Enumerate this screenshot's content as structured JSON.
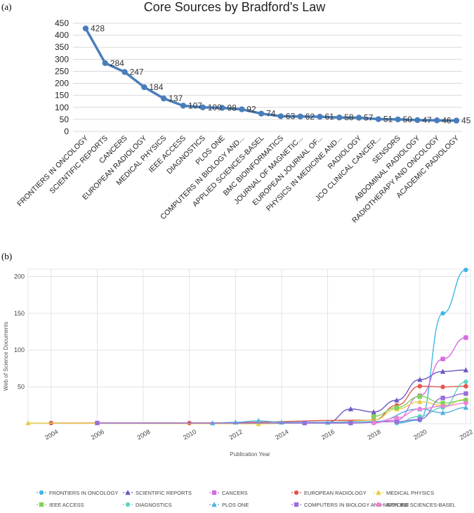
{
  "panel_a_label": "(a)",
  "panel_b_label": "(b)",
  "chart_data": [
    {
      "type": "line",
      "title": "Core Sources by Bradford's Law",
      "xlabel": "",
      "ylabel": "",
      "ylim": [
        0,
        450
      ],
      "yticks": [
        0,
        50,
        100,
        150,
        200,
        250,
        300,
        350,
        400,
        450
      ],
      "categories": [
        "FRONTIERS IN ONCOLOGY",
        "SCIENTIFIC REPORTS",
        "CANCERS",
        "EUROPEAN RADIOLOGY",
        "MEDICAL PHYSICS",
        "IEEE ACCESS",
        "DIAGNOSTICS",
        "PLOS ONE",
        "COMPUTERS IN BIOLOGY AND...",
        "APPLIED SCIENCES-BASEL",
        "BMC BIOINFORMATICS",
        "JOURNAL OF MAGNETIC...",
        "EUROPEAN JOURNAL OF...",
        "PHYSICS IN MEDICINE AND...",
        "RADIOLOGY",
        "JCO CLINICAL CANCER...",
        "SENSORS",
        "ABDOMINAL RADIOLOGY",
        "RADIOTHERAPY AND ONCOLOGY",
        "ACADEMIC RADIOLOGY"
      ],
      "values": [
        428,
        284,
        247,
        184,
        137,
        107,
        100,
        98,
        92,
        74,
        63,
        62,
        61,
        58,
        57,
        51,
        50,
        47,
        46,
        45
      ],
      "data_labels": [
        "428",
        "284",
        "247",
        "184",
        "137",
        "107",
        "100",
        "98",
        "92",
        "74",
        "63",
        "62",
        "61",
        "58",
        "57",
        "51",
        "50",
        "47",
        "46",
        "45"
      ],
      "color": "#4a7ebb"
    },
    {
      "type": "line",
      "title": "",
      "xlabel": "Publication Year",
      "ylabel": "Web of Science Documents",
      "xlim": [
        2003,
        2022.2
      ],
      "ylim": [
        0,
        210
      ],
      "xticks": [
        2004,
        2006,
        2008,
        2010,
        2012,
        2014,
        2016,
        2018,
        2020,
        2022
      ],
      "yticks": [
        50,
        100,
        150,
        200
      ],
      "legend_position": "bottom",
      "series": [
        {
          "name": "FRONTIERS IN ONCOLOGY",
          "color": "#41b6e6",
          "marker": "circle",
          "x": [
            2019,
            2020,
            2021,
            2022
          ],
          "y": [
            1,
            5,
            150,
            209
          ]
        },
        {
          "name": "SCIENTIFIC REPORTS",
          "color": "#6b5bc4",
          "marker": "triangle",
          "x": [
            2016,
            2017,
            2018,
            2019,
            2020,
            2021,
            2022
          ],
          "y": [
            2,
            20,
            16,
            32,
            60,
            71,
            73
          ]
        },
        {
          "name": "CANCERS",
          "color": "#d56be0",
          "marker": "square",
          "x": [
            2018,
            2019,
            2020,
            2021,
            2022
          ],
          "y": [
            2,
            5,
            38,
            88,
            117
          ]
        },
        {
          "name": "EUROPEAN RADIOLOGY",
          "color": "#e0584f",
          "marker": "circle",
          "x": [
            2004,
            2010,
            2018,
            2019,
            2020,
            2021,
            2022
          ],
          "y": [
            1,
            1,
            5,
            25,
            51,
            50,
            51
          ]
        },
        {
          "name": "MEDICAL PHYSICS",
          "color": "#e5cd4a",
          "marker": "triangle",
          "x": [
            2003,
            2013,
            2016,
            2018,
            2019,
            2020,
            2021,
            2022
          ],
          "y": [
            1,
            0,
            2,
            5,
            20,
            30,
            25,
            33
          ]
        },
        {
          "name": "IEEE ACCESS",
          "color": "#7fd35a",
          "marker": "square",
          "x": [
            2018,
            2019,
            2020,
            2021,
            2022
          ],
          "y": [
            10,
            22,
            37,
            28,
            32
          ]
        },
        {
          "name": "DIAGNOSTICS",
          "color": "#5ed4c4",
          "marker": "circle",
          "x": [
            2019,
            2020,
            2021,
            2022
          ],
          "y": [
            2,
            10,
            22,
            57
          ]
        },
        {
          "name": "PLOS ONE",
          "color": "#56b0e0",
          "marker": "triangle",
          "x": [
            2011,
            2012,
            2013,
            2014,
            2016,
            2018,
            2020,
            2021,
            2022
          ],
          "y": [
            1,
            2,
            4,
            2,
            2,
            3,
            20,
            15,
            22
          ]
        },
        {
          "name": "COMPUTERS IN BIOLOGY AND MEDICINE",
          "color": "#9a6fd8",
          "marker": "square",
          "x": [
            2006,
            2015,
            2017,
            2019,
            2020,
            2021,
            2022
          ],
          "y": [
            1,
            1,
            1,
            3,
            6,
            35,
            41
          ]
        },
        {
          "name": "APPLIED SCIENCES-BASEL",
          "color": "#ef7fd7",
          "marker": "circle",
          "x": [
            2018,
            2019,
            2020,
            2021,
            2022
          ],
          "y": [
            1,
            8,
            20,
            24,
            28
          ]
        }
      ]
    }
  ]
}
